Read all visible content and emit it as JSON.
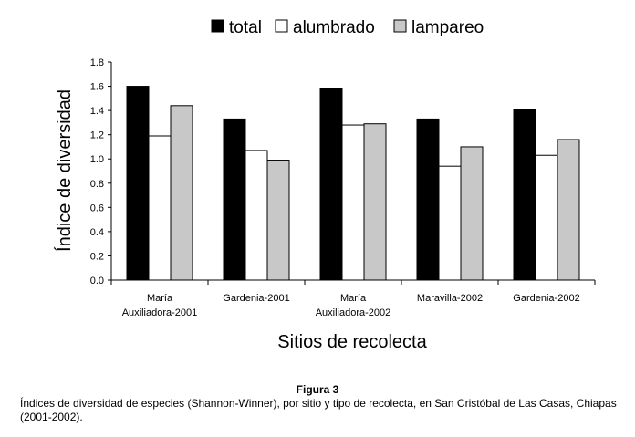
{
  "chart_data": {
    "type": "bar",
    "categories": [
      [
        "María",
        "Auxiliadora-2001"
      ],
      [
        "Gardenia-2001"
      ],
      [
        "María",
        "Auxiliadora-2002"
      ],
      [
        "Maravilla-2002"
      ],
      [
        "Gardenia-2002"
      ]
    ],
    "series": [
      {
        "name": "total",
        "color": "#000000",
        "values": [
          1.6,
          1.33,
          1.58,
          1.33,
          1.41
        ]
      },
      {
        "name": "alumbrado",
        "color": "#ffffff",
        "values": [
          1.19,
          1.07,
          1.28,
          0.94,
          1.03
        ]
      },
      {
        "name": "lampareo",
        "color": "#c8c8c8",
        "values": [
          1.44,
          0.99,
          1.29,
          1.1,
          1.16
        ]
      }
    ],
    "xlabel": "Sitios de recolecta",
    "ylabel": "Índice de diversidad",
    "ylim": [
      0,
      1.8
    ],
    "yticks": [
      "0.0",
      "0.2",
      "0.4",
      "0.6",
      "0.8",
      "1.0",
      "1.2",
      "1.4",
      "1.6",
      "1.8"
    ],
    "legend_position": "top",
    "grid": false
  },
  "caption": {
    "title": "Figura 3",
    "text": "Índices de diversidad de especies (Shannon-Winner), por sitio y tipo de recolecta, en San Cristóbal de Las Casas, Chiapas (2001-2002)."
  }
}
